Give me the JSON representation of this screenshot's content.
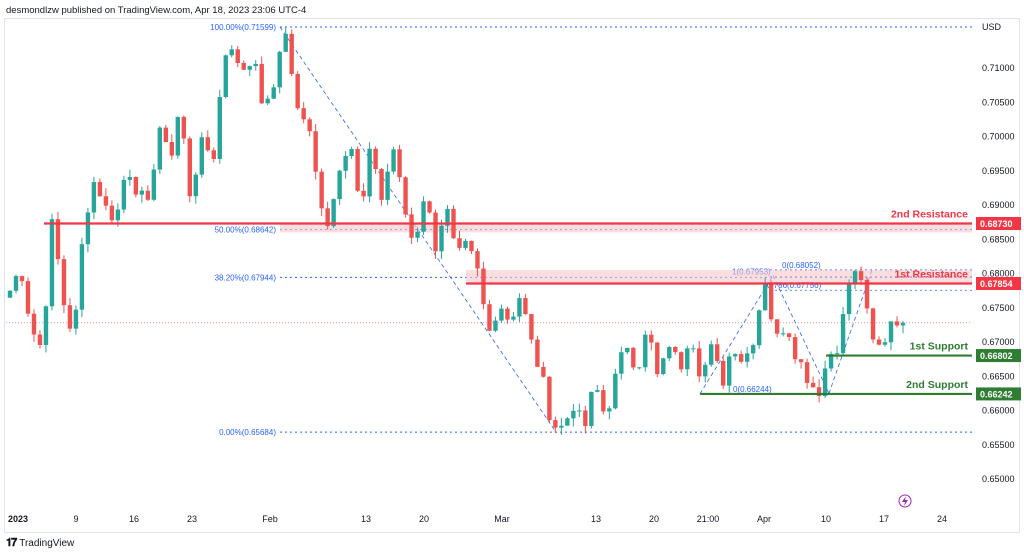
{
  "header": "desmondlzw published on TradingView.com, Apr 18, 2023 23:06 UTC-4",
  "currency": "USD",
  "brand": "TradingView",
  "colors": {
    "up": "#26a69a",
    "down": "#ef5350",
    "resistance": "#f23645",
    "support": "#2e7d32",
    "fib": "#2962ff"
  },
  "chart_data": {
    "type": "candlestick",
    "y_axis": {
      "ticks": [
        "0.71000",
        "0.70500",
        "0.70000",
        "0.69500",
        "0.69000",
        "0.68500",
        "0.68000",
        "0.67500",
        "0.67000",
        "0.66500",
        "0.66000",
        "0.65500",
        "0.65000"
      ],
      "range": [
        0.6445,
        0.718
      ],
      "label": "USD"
    },
    "x_axis": {
      "ticks": [
        "2023",
        "9",
        "16",
        "23",
        "Feb",
        "13",
        "20",
        "Mar",
        "13",
        "20",
        "21:00",
        "Apr",
        "10",
        "17",
        "24"
      ]
    },
    "levels": [
      {
        "name": "2nd Resistance",
        "value": "0.68730",
        "kind": "resistance"
      },
      {
        "name": "1st Resistance",
        "value": "0.67854",
        "kind": "resistance"
      },
      {
        "name": "1st Support",
        "value": "0.66802",
        "kind": "support"
      },
      {
        "name": "2nd Support",
        "value": "0.66242",
        "kind": "support"
      }
    ],
    "fib_major": [
      {
        "label": "100.00%(0.71599)",
        "value": 0.71599
      },
      {
        "label": "50.00%(0.68642)",
        "value": 0.68642
      },
      {
        "label": "38.20%(0.67944)",
        "value": 0.67944
      },
      {
        "label": "0.00%(0.65684)",
        "value": 0.65684
      }
    ],
    "fib_minor": [
      {
        "label": "0(0.68052)",
        "value": 0.68052
      },
      {
        "label": "1(0.67953)",
        "value": 0.67953
      },
      {
        "label": "0.786(0.67756)",
        "value": 0.67756
      },
      {
        "label": "0(0.66244)",
        "value": 0.66244
      }
    ],
    "last_price": 0.6728,
    "path": [
      0.6775,
      0.681,
      0.672,
      0.669,
      0.688,
      0.676,
      0.6705,
      0.688,
      0.694,
      0.6895,
      0.688,
      0.696,
      0.692,
      0.6895,
      0.702,
      0.696,
      0.705,
      0.6895,
      0.701,
      0.694,
      0.711,
      0.7135,
      0.709,
      0.712,
      0.703,
      0.709,
      0.7155,
      0.704,
      0.702,
      0.692,
      0.687,
      0.696,
      0.7,
      0.688,
      0.699,
      0.6905,
      0.699,
      0.69,
      0.684,
      0.692,
      0.684,
      0.69,
      0.682,
      0.684,
      0.68,
      0.671,
      0.676,
      0.673,
      0.677,
      0.67,
      0.665,
      0.658,
      0.6575,
      0.661,
      0.657,
      0.664,
      0.659,
      0.665,
      0.67,
      0.666,
      0.672,
      0.664,
      0.67,
      0.666,
      0.672,
      0.665,
      0.669,
      0.664,
      0.67,
      0.667,
      0.671,
      0.6795,
      0.67,
      0.673,
      0.668,
      0.665,
      0.6625,
      0.668,
      0.67,
      0.6795,
      0.68,
      0.67,
      0.669,
      0.674,
      0.6728
    ]
  }
}
